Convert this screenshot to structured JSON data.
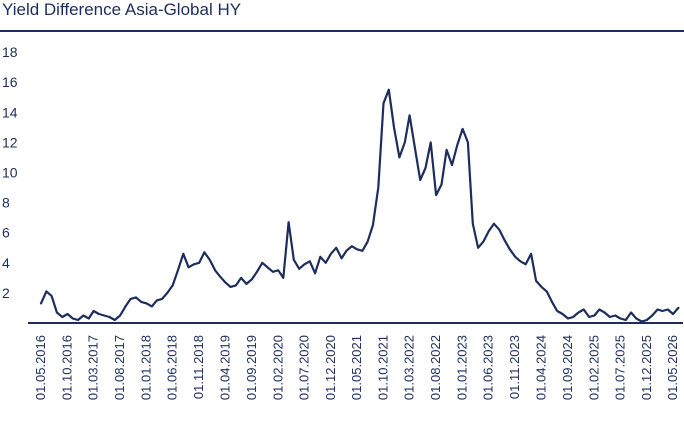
{
  "chart_data": {
    "type": "line",
    "title": "Yield Difference Asia-Global HY",
    "xlabel": "",
    "ylabel": "",
    "ylim": [
      0,
      18
    ],
    "yticks": [
      2,
      4,
      6,
      8,
      10,
      12,
      14,
      16,
      18
    ],
    "xticks": [
      "01.05.2016",
      "01.10.2016",
      "01.03.2017",
      "01.08.2017",
      "01.01.2018",
      "01.06.2018",
      "01.11.2018",
      "01.04.2019",
      "01.09.2019",
      "01.02.2020",
      "01.07.2020",
      "01.12.2020",
      "01.05.2021",
      "01.10.2021",
      "01.03.2022",
      "01.08.2022",
      "01.01.2023",
      "01.06.2023",
      "01.11.2023",
      "01.04.2024",
      "01.09.2024",
      "01.02.2025",
      "01.07.2025",
      "01.12.2025",
      "01.05.2026"
    ],
    "grid": false,
    "colors": {
      "line": "#1d2d5c",
      "text": "#1d2d5c"
    },
    "series": [
      {
        "x": [
          "2016-05-01",
          "2016-06-01",
          "2016-07-01",
          "2016-08-01",
          "2016-09-01",
          "2016-10-01",
          "2016-11-01",
          "2016-12-01",
          "2017-01-01",
          "2017-02-01",
          "2017-03-01",
          "2017-04-01",
          "2017-05-01",
          "2017-06-01",
          "2017-07-01",
          "2017-08-01",
          "2017-09-01",
          "2017-10-01",
          "2017-11-01",
          "2017-12-01",
          "2018-01-01",
          "2018-02-01",
          "2018-03-01",
          "2018-04-01",
          "2018-05-01",
          "2018-06-01",
          "2018-07-01",
          "2018-08-01",
          "2018-09-01",
          "2018-10-01",
          "2018-11-01",
          "2018-12-01",
          "2019-01-01",
          "2019-02-01",
          "2019-03-01",
          "2019-04-01",
          "2019-05-01",
          "2019-06-01",
          "2019-07-01",
          "2019-08-01",
          "2019-09-01",
          "2019-10-01",
          "2019-11-01",
          "2019-12-01",
          "2020-01-01",
          "2020-02-01",
          "2020-03-01",
          "2020-04-01",
          "2020-05-01",
          "2020-06-01",
          "2020-07-01",
          "2020-08-01",
          "2020-09-01",
          "2020-10-01",
          "2020-11-01",
          "2020-12-01",
          "2021-01-01",
          "2021-02-01",
          "2021-03-01",
          "2021-04-01",
          "2021-05-01",
          "2021-06-01",
          "2021-07-01",
          "2021-08-01",
          "2021-09-01",
          "2021-10-01",
          "2021-11-01",
          "2021-12-01",
          "2022-01-01",
          "2022-02-01",
          "2022-03-01",
          "2022-04-01",
          "2022-05-01",
          "2022-06-01",
          "2022-07-01",
          "2022-08-01",
          "2022-09-01",
          "2022-10-01",
          "2022-11-01",
          "2022-12-01",
          "2023-01-01",
          "2023-02-01",
          "2023-03-01",
          "2023-04-01",
          "2023-05-01",
          "2023-06-01",
          "2023-07-01",
          "2023-08-01",
          "2023-09-01",
          "2023-10-01",
          "2023-11-01",
          "2023-12-01",
          "2024-01-01",
          "2024-02-01",
          "2024-03-01",
          "2024-04-01",
          "2024-05-01",
          "2024-06-01",
          "2024-07-01",
          "2024-08-01",
          "2024-09-01",
          "2024-10-01",
          "2024-11-01",
          "2024-12-01",
          "2025-01-01",
          "2025-02-01",
          "2025-03-01",
          "2025-04-01",
          "2025-05-01",
          "2025-06-01",
          "2025-07-01",
          "2025-08-01",
          "2025-09-01",
          "2025-10-01",
          "2025-11-01",
          "2025-12-01",
          "2026-01-01",
          "2026-02-01",
          "2026-03-01",
          "2026-04-01",
          "2026-05-01",
          "2026-06-01"
        ],
        "values": [
          1.3,
          2.1,
          1.8,
          0.7,
          0.4,
          0.6,
          0.3,
          0.2,
          0.5,
          0.3,
          0.8,
          0.6,
          0.5,
          0.4,
          0.2,
          0.5,
          1.1,
          1.6,
          1.7,
          1.4,
          1.3,
          1.1,
          1.5,
          1.6,
          2.0,
          2.5,
          3.5,
          4.6,
          3.7,
          3.9,
          4.0,
          4.7,
          4.2,
          3.5,
          3.1,
          2.7,
          2.4,
          2.5,
          3.0,
          2.6,
          2.9,
          3.4,
          4.0,
          3.7,
          3.4,
          3.5,
          3.0,
          6.7,
          4.2,
          3.6,
          3.9,
          4.1,
          3.3,
          4.4,
          4.0,
          4.6,
          5.0,
          4.3,
          4.8,
          5.1,
          4.9,
          4.8,
          5.4,
          6.5,
          9.0,
          14.6,
          15.5,
          13.0,
          11.0,
          12.0,
          13.8,
          11.6,
          9.5,
          10.3,
          12.0,
          8.5,
          9.2,
          11.5,
          10.5,
          11.8,
          12.9,
          12.0,
          6.6,
          5.0,
          5.4,
          6.1,
          6.6,
          6.2,
          5.5,
          4.9,
          4.4,
          4.1,
          3.9,
          4.6,
          2.8,
          2.4,
          2.1,
          1.4,
          0.8,
          0.6,
          0.3,
          0.4,
          0.7,
          0.9,
          0.4,
          0.5,
          0.9,
          0.7,
          0.4,
          0.5,
          0.3,
          0.2,
          0.7,
          0.3,
          0.1,
          0.2,
          0.5,
          0.9,
          0.8,
          0.9,
          0.6,
          1.0
        ]
      }
    ]
  }
}
